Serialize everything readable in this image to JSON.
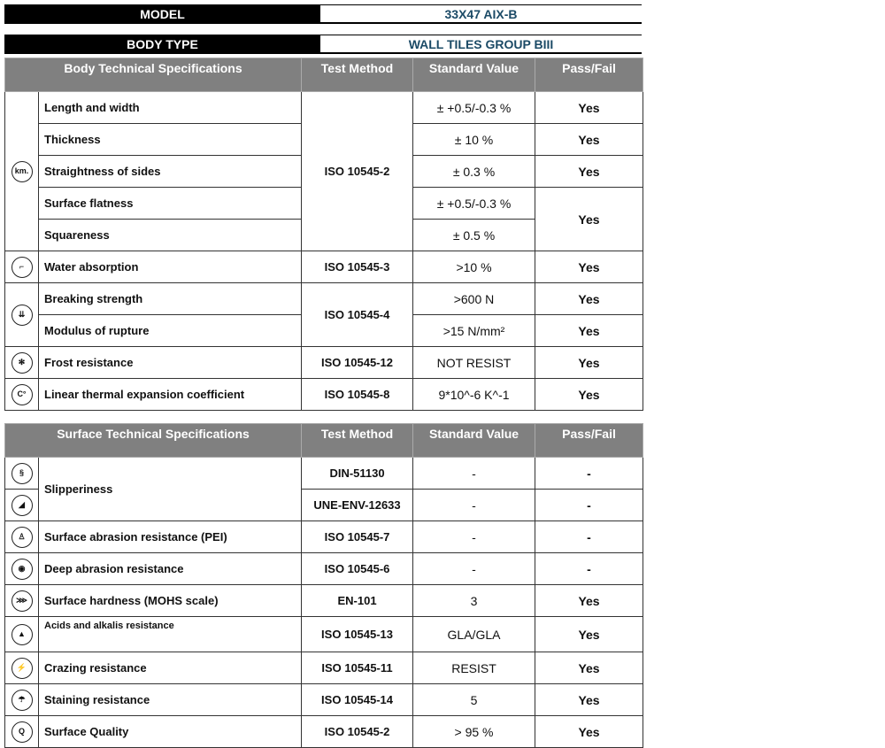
{
  "model": {
    "label": "MODEL",
    "value": "33X47   AIX-B"
  },
  "body_type": {
    "label": "BODY TYPE",
    "value": "WALL TILES GROUP BIII"
  },
  "body_table": {
    "headers": [
      "Body Technical Specifications",
      "Test Method",
      "Standard Value",
      "Pass/Fail"
    ],
    "rows": [
      {
        "spec": "Length and width",
        "method": "ISO 10545-2",
        "value": "± +0.5/-0.3 %",
        "pass": "Yes"
      },
      {
        "spec": "Thickness",
        "value": "± 10 %",
        "pass": "Yes"
      },
      {
        "spec": "Straightness of sides",
        "value": "± 0.3 %",
        "pass": "Yes"
      },
      {
        "spec": "Surface flatness",
        "value": "± +0.5/-0.3 %",
        "pass": "Yes"
      },
      {
        "spec": "Squareness",
        "value": "± 0.5 %"
      },
      {
        "spec": "Water absorption",
        "method": "ISO 10545-3",
        "value": ">10 %",
        "pass": "Yes"
      },
      {
        "spec": "Breaking strength",
        "method": "ISO 10545-4",
        "value": ">600 N",
        "pass": "Yes"
      },
      {
        "spec": "Modulus of rupture",
        "value": ">15 N/mm²",
        "pass": "Yes"
      },
      {
        "spec": "Frost resistance",
        "method": "ISO 10545-12",
        "value": "NOT RESIST",
        "pass": "Yes"
      },
      {
        "spec": "Linear thermal expansion coefficient",
        "method": "ISO 10545-8",
        "value": "9*10^-6 K^-1",
        "pass": "Yes"
      }
    ],
    "icons": {
      "dimension": "km.",
      "water": "tap-icon",
      "breaking": "press-icon",
      "frost": "snowflake-icon",
      "thermal": "C°"
    }
  },
  "surface_table": {
    "headers": [
      "Surface Technical Specifications",
      "Test Method",
      "Standard Value",
      "Pass/Fail"
    ],
    "rows": [
      {
        "spec": "Slipperiness",
        "method": "DIN-51130",
        "value": "-",
        "pass": "-"
      },
      {
        "method": "UNE-ENV-12633",
        "value": "-",
        "pass": "-"
      },
      {
        "spec": "Surface abrasion resistance (PEI)",
        "method": "ISO 10545-7",
        "value": "-",
        "pass": "-"
      },
      {
        "spec": "Deep abrasion resistance",
        "method": "ISO 10545-6",
        "value": "-",
        "pass": "-"
      },
      {
        "spec": "Surface hardness (MOHS scale)",
        "method": "EN-101",
        "value": "3",
        "pass": "Yes"
      },
      {
        "spec": "Acids and alkalis resistance",
        "method": "ISO 10545-13",
        "value": "GLA/GLA",
        "pass": "Yes"
      },
      {
        "spec": "Crazing resistance",
        "method": "ISO 10545-11",
        "value": "RESIST",
        "pass": "Yes"
      },
      {
        "spec": "Staining resistance",
        "method": "ISO 10545-14",
        "value": "5",
        "pass": "Yes"
      },
      {
        "spec": "Surface Quality",
        "method": "ISO 10545-2",
        "value": "> 95 %",
        "pass": "Yes"
      }
    ]
  },
  "colors": {
    "header_bg": "#808080",
    "value_text": "#1b4a66"
  }
}
